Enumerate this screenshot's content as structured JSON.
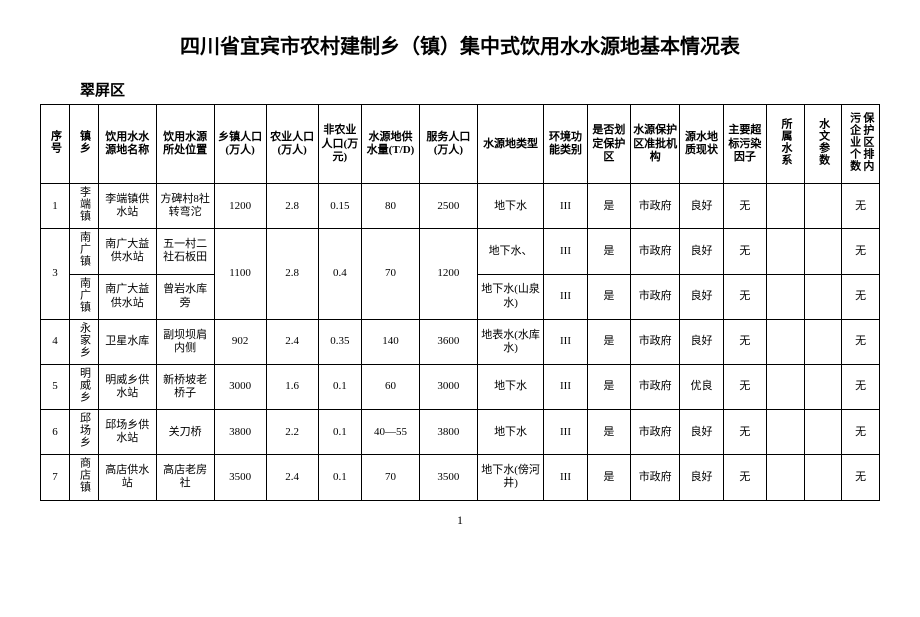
{
  "title": "四川省宜宾市农村建制乡（镇）集中式饮用水水源地基本情况表",
  "district": "翠屏区",
  "headers": {
    "seq": "序号",
    "town": "镇乡",
    "source_name": "饮用水水源地名称",
    "source_loc": "饮用水源所处位置",
    "town_pop": "乡镇人口(万人)",
    "agri_pop": "农业人口(万人)",
    "nonagri_pop": "非农业人口(万元)",
    "supply": "水源地供水量(T/D)",
    "serve_pop": "服务人口(万人)",
    "src_type": "水源地类型",
    "env_class": "环境功能类别",
    "zone": "是否划定保护区",
    "approve": "水源保护区准批机构",
    "quality": "源水地质现状",
    "factor": "主要超标污染因子",
    "river": "所属水系",
    "hydro": "水文参数",
    "enterprise": "保护区排内污企业个数"
  },
  "rows": [
    {
      "seq": "1",
      "town": "李端镇",
      "src": "李端镇供水站",
      "loc": "方碑村8社转弯沱",
      "pop": "1200",
      "agri": "2.8",
      "nonagri": "0.15",
      "supply": "80",
      "serve": "2500",
      "type": "地下水",
      "env": "III",
      "zone": "是",
      "approve": "市政府",
      "quality": "良好",
      "factor": "无",
      "river": "",
      "hydro": "",
      "ent": "无",
      "rowspan_pop": 1,
      "rowspan_seq": 1
    },
    {
      "seq": "3",
      "town": "南广镇",
      "src": "南广大益供水站",
      "loc": "五一村二社石板田",
      "pop": "1100",
      "agri": "2.8",
      "nonagri": "0.4",
      "supply": "70",
      "serve": "1200",
      "type": "地下水、",
      "env": "III",
      "zone": "是",
      "approve": "市政府",
      "quality": "良好",
      "factor": "无",
      "river": "",
      "hydro": "",
      "ent": "无",
      "rowspan_pop": 2,
      "rowspan_seq": 2
    },
    {
      "seq": "",
      "town": "南广镇",
      "src": "南广大益供水站",
      "loc": "曾岩水库旁",
      "pop": "",
      "agri": "",
      "nonagri": "",
      "supply": "",
      "serve": "",
      "type": "地下水(山泉水)",
      "env": "III",
      "zone": "是",
      "approve": "市政府",
      "quality": "良好",
      "factor": "无",
      "river": "",
      "hydro": "",
      "ent": "无",
      "rowspan_pop": 0,
      "rowspan_seq": 0
    },
    {
      "seq": "4",
      "town": "永家乡",
      "src": "卫星水库",
      "loc": "副坝坝肩内侧",
      "pop": "902",
      "agri": "2.4",
      "nonagri": "0.35",
      "supply": "140",
      "serve": "3600",
      "type": "地表水(水库水)",
      "env": "III",
      "zone": "是",
      "approve": "市政府",
      "quality": "良好",
      "factor": "无",
      "river": "",
      "hydro": "",
      "ent": "无",
      "rowspan_pop": 1,
      "rowspan_seq": 1
    },
    {
      "seq": "5",
      "town": "明威乡",
      "src": "明威乡供水站",
      "loc": "新桥坡老桥子",
      "pop": "3000",
      "agri": "1.6",
      "nonagri": "0.1",
      "supply": "60",
      "serve": "3000",
      "type": "地下水",
      "env": "III",
      "zone": "是",
      "approve": "市政府",
      "quality": "优良",
      "factor": "无",
      "river": "",
      "hydro": "",
      "ent": "无",
      "rowspan_pop": 1,
      "rowspan_seq": 1
    },
    {
      "seq": "6",
      "town": "邱场乡",
      "src": "邱场乡供水站",
      "loc": "关刀桥",
      "pop": "3800",
      "agri": "2.2",
      "nonagri": "0.1",
      "supply": "40—55",
      "serve": "3800",
      "type": "地下水",
      "env": "III",
      "zone": "是",
      "approve": "市政府",
      "quality": "良好",
      "factor": "无",
      "river": "",
      "hydro": "",
      "ent": "无",
      "rowspan_pop": 1,
      "rowspan_seq": 1
    },
    {
      "seq": "7",
      "town": "商店镇",
      "src": "高店供水站",
      "loc": "高店老房社",
      "pop": "3500",
      "agri": "2.4",
      "nonagri": "0.1",
      "supply": "70",
      "serve": "3500",
      "type": "地下水(傍河井)",
      "env": "III",
      "zone": "是",
      "approve": "市政府",
      "quality": "良好",
      "factor": "无",
      "river": "",
      "hydro": "",
      "ent": "无",
      "rowspan_pop": 1,
      "rowspan_seq": 1
    }
  ],
  "pageno": "1"
}
